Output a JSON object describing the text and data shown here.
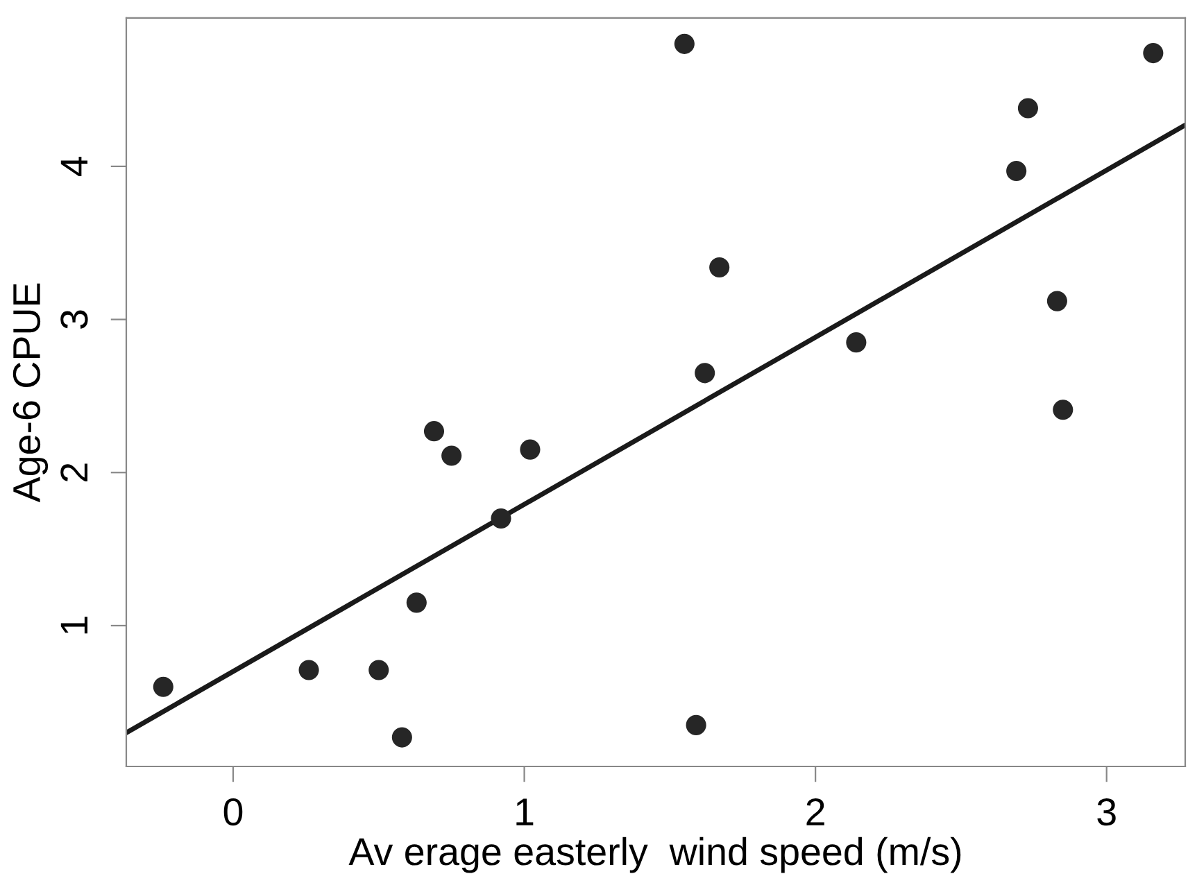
{
  "chart_data": {
    "type": "scatter",
    "xlabel": "Av erage easterly  wind speed (m/s)",
    "ylabel": "Age-6 CPUE",
    "xlim": [
      -0.367,
      3.27
    ],
    "ylim": [
      0.08,
      4.97
    ],
    "xticks": [
      0,
      1,
      2,
      3
    ],
    "yticks": [
      1,
      2,
      3,
      4
    ],
    "grid": false,
    "series": [
      {
        "marker": "circle",
        "color": "#262626",
        "x": [
          -0.24,
          0.26,
          0.5,
          0.58,
          0.63,
          0.69,
          0.75,
          0.92,
          1.02,
          1.55,
          1.59,
          1.62,
          1.67,
          2.14,
          2.69,
          2.73,
          2.83,
          2.85,
          3.16
        ],
        "values": [
          0.6,
          0.71,
          0.71,
          0.27,
          1.15,
          2.27,
          2.11,
          1.7,
          2.15,
          4.8,
          0.35,
          2.65,
          3.34,
          2.85,
          3.97,
          4.38,
          3.12,
          2.41,
          4.74
        ]
      },
      {
        "type": "line",
        "color": "#1a1a1a",
        "line_style": "solid",
        "x": [
          -0.367,
          3.27
        ],
        "values": [
          0.3,
          4.27
        ]
      }
    ]
  }
}
